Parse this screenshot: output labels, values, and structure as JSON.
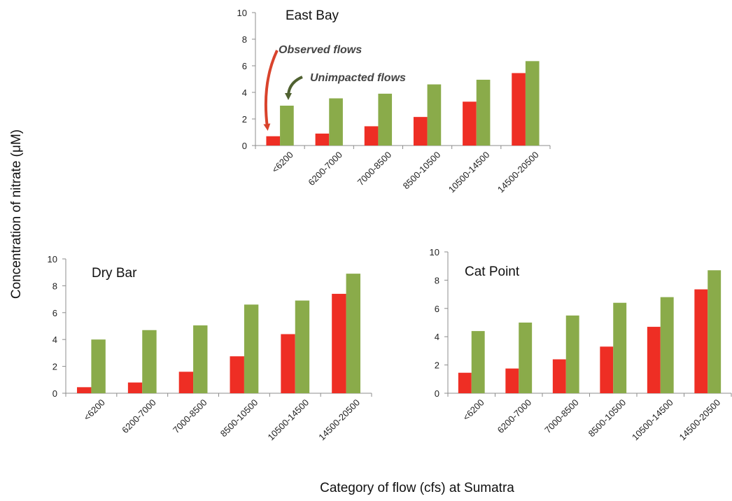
{
  "chart_data": [
    {
      "type": "bar",
      "title": "East Bay",
      "categories": [
        "<6200",
        "6200-7000",
        "7000-8500",
        "8500-10500",
        "10500-14500",
        "14500-20500"
      ],
      "series": [
        {
          "name": "Observed flows",
          "values": [
            0.7,
            0.9,
            1.45,
            2.15,
            3.3,
            5.45
          ]
        },
        {
          "name": "Unimpacted flows",
          "values": [
            3.0,
            3.55,
            3.9,
            4.6,
            4.95,
            6.35
          ]
        }
      ],
      "ylim": [
        0,
        10
      ],
      "yticks": [
        0,
        2,
        4,
        6,
        8,
        10
      ]
    },
    {
      "type": "bar",
      "title": "Dry Bar",
      "categories": [
        "<6200",
        "6200-7000",
        "7000-8500",
        "8500-10500",
        "10500-14500",
        "14500-20500"
      ],
      "series": [
        {
          "values": [
            0.45,
            0.8,
            1.6,
            2.75,
            4.4,
            7.4
          ]
        },
        {
          "values": [
            4.0,
            4.7,
            5.05,
            6.6,
            6.9,
            8.9
          ]
        }
      ],
      "ylim": [
        0,
        10
      ],
      "yticks": [
        0,
        2,
        4,
        6,
        8,
        10
      ]
    },
    {
      "type": "bar",
      "title": "Cat Point",
      "categories": [
        "<6200",
        "6200-7000",
        "7000-8500",
        "8500-10500",
        "10500-14500",
        "14500-20500"
      ],
      "series": [
        {
          "values": [
            1.45,
            1.75,
            2.4,
            3.3,
            4.7,
            7.35
          ]
        },
        {
          "values": [
            4.4,
            5.0,
            5.5,
            6.4,
            6.8,
            8.7
          ]
        }
      ],
      "ylim": [
        0,
        10
      ],
      "yticks": [
        0,
        2,
        4,
        6,
        8,
        10
      ]
    }
  ],
  "ylabel": "Concentration of nitrate (μM)",
  "xlabel": "Category of flow (cfs) at Sumatra",
  "annotations": {
    "observed": "Observed flows",
    "unimpacted": "Unimpacted flows"
  },
  "colors": {
    "observed": "#ee2e24",
    "unimpacted": "#8aab4a",
    "observed_arrow": "#d9432c",
    "unimpacted_arrow": "#4f6130",
    "axis": "#8c8c8c"
  }
}
